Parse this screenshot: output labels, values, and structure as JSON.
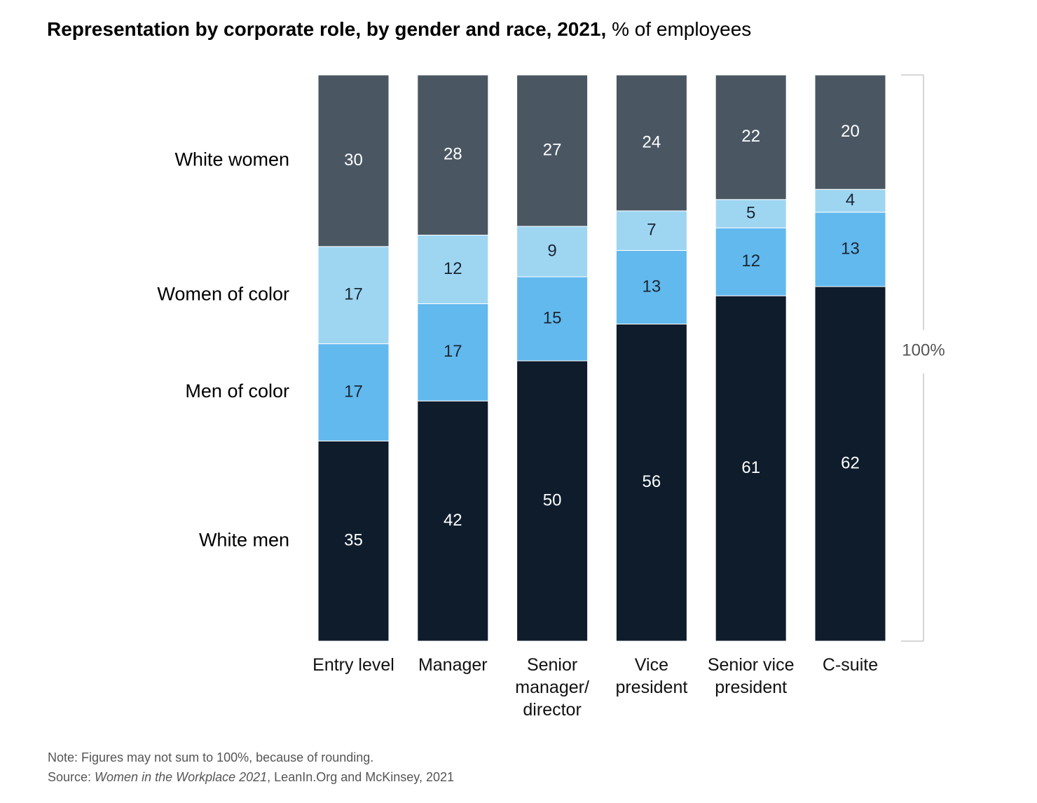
{
  "chart_data": {
    "type": "bar",
    "stacked": "percent",
    "title": "Representation by corporate role, by gender and race, 2021,",
    "subtitle": "% of employees",
    "categories": [
      "Entry level",
      "Manager",
      "Senior manager/ director",
      "Vice president",
      "Senior vice president",
      "C-suite"
    ],
    "series": [
      {
        "name": "White men",
        "color": "#0e1c2c",
        "values": [
          35,
          42,
          50,
          56,
          61,
          62
        ]
      },
      {
        "name": "Men of color",
        "color": "#62b9ee",
        "values": [
          17,
          17,
          15,
          13,
          12,
          13
        ]
      },
      {
        "name": "Women of color",
        "color": "#9ed6f2",
        "values": [
          17,
          12,
          9,
          7,
          5,
          4
        ]
      },
      {
        "name": "White women",
        "color": "#4a5763",
        "values": [
          30,
          28,
          27,
          24,
          22,
          20
        ]
      }
    ],
    "total_label": "100%",
    "note": "Note: Figures may not sum to 100%, because of rounding.",
    "source": {
      "prefix": "Source: ",
      "title": "Women in the Workplace 2021",
      "suffix": ", LeanIn.Org and McKinsey, 2021"
    }
  }
}
